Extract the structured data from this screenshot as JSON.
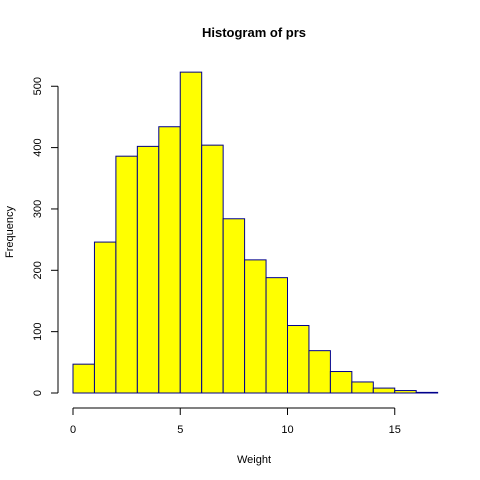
{
  "chart_data": {
    "type": "bar",
    "title": "Histogram of prs",
    "xlabel": "Weight",
    "ylabel": "Frequency",
    "bin_edges": [
      0,
      1,
      2,
      3,
      4,
      5,
      6,
      7,
      8,
      9,
      10,
      11,
      12,
      13,
      14,
      15,
      16,
      17
    ],
    "values": [
      47,
      246,
      386,
      402,
      434,
      523,
      404,
      284,
      217,
      188,
      110,
      69,
      35,
      18,
      8,
      4,
      1
    ],
    "xlim": [
      0,
      17
    ],
    "ylim": [
      0,
      540
    ],
    "x_ticks": [
      0,
      5,
      10,
      15
    ],
    "y_ticks": [
      0,
      100,
      200,
      300,
      400,
      500
    ],
    "grid": false,
    "bar_fill": "#FFFF00",
    "bar_stroke": "#00008B"
  }
}
